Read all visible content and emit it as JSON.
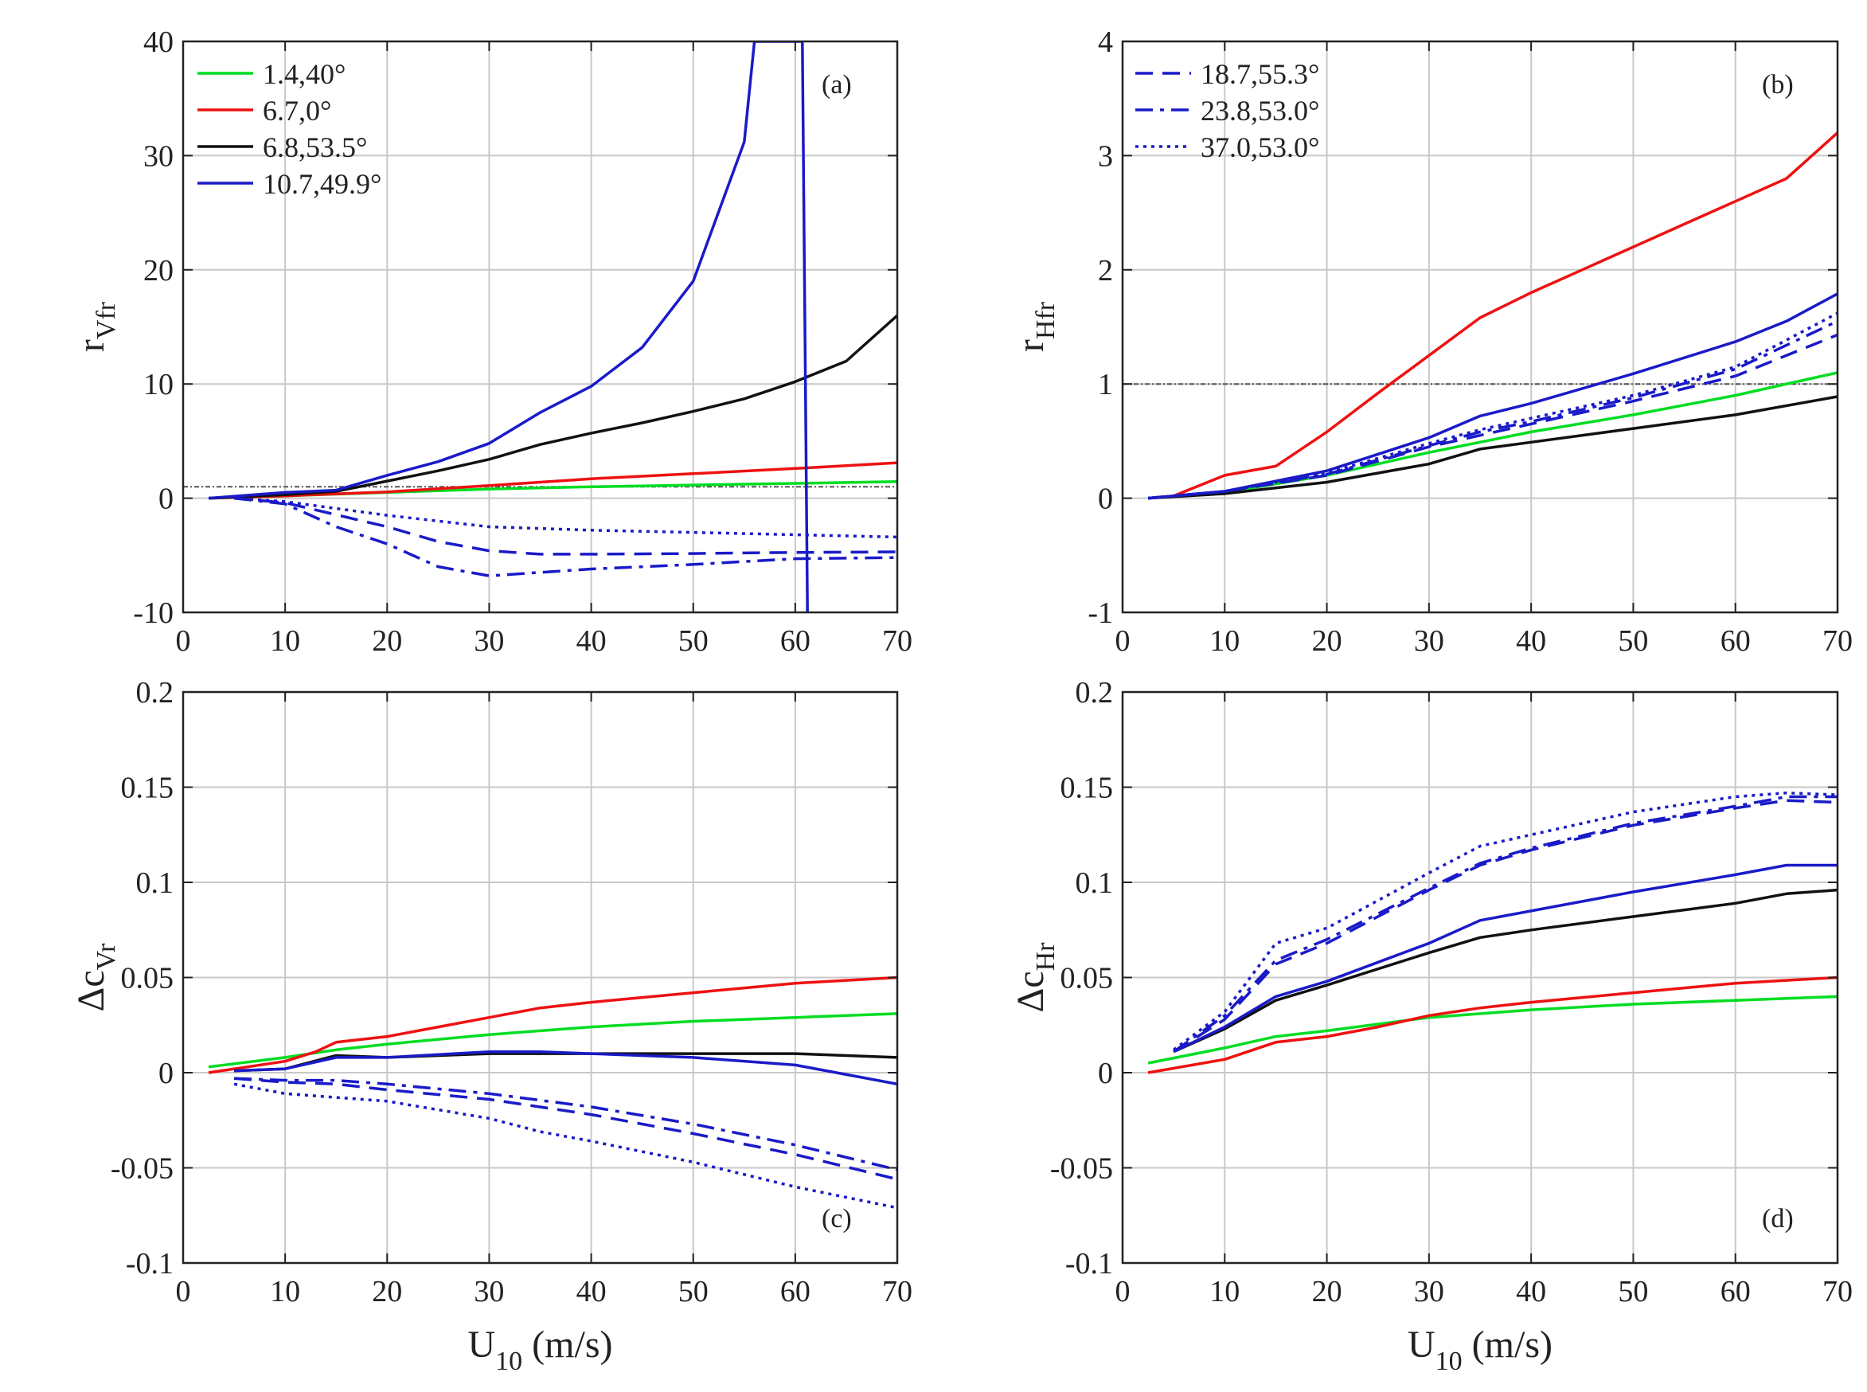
{
  "colors": {
    "green": "#00dd22",
    "red": "#ee1111",
    "black": "#111111",
    "blue": "#1a1ac8",
    "grid": "#c8c8c8",
    "refline": "#555555"
  },
  "legend_a": [
    "1.4,40°",
    "6.7,0°",
    "6.8,53.5°",
    "10.7,49.9°"
  ],
  "legend_b": [
    "18.7,55.3°",
    "23.8,53.0°",
    "37.0,53.0°"
  ],
  "chart_data": [
    {
      "type": "line",
      "panel_label": "(a)",
      "ylabel": {
        "main": "r",
        "sub": "Vfr"
      },
      "xlabel": "",
      "xlim": [
        0,
        70
      ],
      "ylim": [
        -10,
        40
      ],
      "xticks": [
        0,
        10,
        20,
        30,
        40,
        50,
        60,
        70
      ],
      "yticks": [
        -10,
        0,
        10,
        20,
        30,
        40
      ],
      "grid": true,
      "reference_line": 1,
      "series": [
        {
          "name": "1.4,40°",
          "color": "green",
          "dash": "solid",
          "x": [
            2.5,
            10,
            20,
            30,
            40,
            50,
            60,
            70
          ],
          "y": [
            0,
            0.2,
            0.5,
            0.8,
            1.0,
            1.15,
            1.3,
            1.45
          ]
        },
        {
          "name": "6.7,0°",
          "color": "red",
          "dash": "solid",
          "x": [
            2.5,
            10,
            20,
            30,
            40,
            50,
            60,
            70
          ],
          "y": [
            0,
            0.2,
            0.55,
            1.1,
            1.7,
            2.15,
            2.6,
            3.1
          ]
        },
        {
          "name": "6.8,53.5°",
          "color": "black",
          "dash": "solid",
          "x": [
            2.5,
            10,
            15,
            20,
            25,
            30,
            35,
            40,
            45,
            50,
            55,
            60,
            65,
            70
          ],
          "y": [
            0,
            0.3,
            0.6,
            1.5,
            2.4,
            3.4,
            4.7,
            5.7,
            6.6,
            7.6,
            8.7,
            10.2,
            12.0,
            16.0
          ]
        },
        {
          "name": "10.7,49.9°",
          "color": "blue",
          "dash": "solid",
          "x": [
            2.5,
            10,
            15,
            20,
            25,
            30,
            35,
            40,
            45,
            50,
            55,
            56,
            60.7,
            61.2
          ],
          "y": [
            0,
            0.5,
            0.7,
            2.0,
            3.2,
            4.8,
            7.5,
            9.8,
            13.2,
            19.0,
            31.2,
            40,
            40,
            -10
          ]
        },
        {
          "name": "18.7,55.3°",
          "color": "blue",
          "dash": "dashed",
          "x": [
            5,
            10,
            20,
            25,
            30,
            35,
            40,
            50,
            60,
            70
          ],
          "y": [
            0,
            -0.4,
            -2.5,
            -3.8,
            -4.6,
            -4.9,
            -4.9,
            -4.85,
            -4.75,
            -4.7
          ]
        },
        {
          "name": "23.8,53.0°",
          "color": "blue",
          "dash": "dashdot",
          "x": [
            5,
            10,
            15,
            20,
            25,
            30,
            35,
            40,
            50,
            60,
            70
          ],
          "y": [
            0,
            -0.5,
            -2.5,
            -4.0,
            -6.0,
            -6.8,
            -6.5,
            -6.2,
            -5.8,
            -5.3,
            -5.2
          ]
        },
        {
          "name": "37.0,53.0°",
          "color": "blue",
          "dash": "dotted",
          "x": [
            5,
            10,
            20,
            30,
            40,
            50,
            60,
            70
          ],
          "y": [
            0,
            -0.3,
            -1.5,
            -2.5,
            -2.8,
            -3.0,
            -3.2,
            -3.4
          ]
        }
      ]
    },
    {
      "type": "line",
      "panel_label": "(b)",
      "ylabel": {
        "main": "r",
        "sub": "Hfr"
      },
      "xlabel": "",
      "xlim": [
        0,
        70
      ],
      "ylim": [
        -1,
        4
      ],
      "xticks": [
        0,
        10,
        20,
        30,
        40,
        50,
        60,
        70
      ],
      "yticks": [
        -1,
        0,
        1,
        2,
        3,
        4
      ],
      "grid": true,
      "reference_line": 1,
      "series": [
        {
          "name": "1.4,40°",
          "color": "green",
          "dash": "solid",
          "x": [
            2.5,
            10,
            20,
            30,
            40,
            50,
            60,
            70
          ],
          "y": [
            0,
            0.05,
            0.2,
            0.4,
            0.58,
            0.73,
            0.9,
            1.1
          ]
        },
        {
          "name": "6.7,0°",
          "color": "red",
          "dash": "solid",
          "x": [
            2.5,
            5,
            10,
            15,
            20,
            25,
            30,
            35,
            40,
            45,
            50,
            55,
            60,
            65,
            70
          ],
          "y": [
            0,
            0.02,
            0.2,
            0.28,
            0.58,
            0.92,
            1.25,
            1.58,
            1.8,
            2.0,
            2.2,
            2.4,
            2.6,
            2.8,
            3.2
          ]
        },
        {
          "name": "6.8,53.5°",
          "color": "black",
          "dash": "solid",
          "x": [
            2.5,
            10,
            20,
            30,
            35,
            40,
            50,
            60,
            70
          ],
          "y": [
            0,
            0.04,
            0.14,
            0.3,
            0.43,
            0.49,
            0.61,
            0.73,
            0.89
          ]
        },
        {
          "name": "10.7,49.9°",
          "color": "blue",
          "dash": "solid",
          "x": [
            2.5,
            10,
            20,
            30,
            35,
            40,
            50,
            60,
            65,
            70
          ],
          "y": [
            0,
            0.06,
            0.24,
            0.53,
            0.72,
            0.83,
            1.09,
            1.37,
            1.55,
            1.79
          ]
        },
        {
          "name": "18.7,55.3°",
          "color": "blue",
          "dash": "dashed",
          "x": [
            2.5,
            10,
            20,
            30,
            35,
            40,
            50,
            60,
            70
          ],
          "y": [
            0,
            0.06,
            0.2,
            0.45,
            0.55,
            0.65,
            0.85,
            1.07,
            1.43
          ]
        },
        {
          "name": "23.8,53.0°",
          "color": "blue",
          "dash": "dashdot",
          "x": [
            2.5,
            10,
            20,
            30,
            35,
            40,
            50,
            60,
            70
          ],
          "y": [
            0,
            0.06,
            0.21,
            0.46,
            0.58,
            0.67,
            0.88,
            1.13,
            1.55
          ]
        },
        {
          "name": "37.0,53.0°",
          "color": "blue",
          "dash": "dotted",
          "x": [
            2.5,
            10,
            20,
            30,
            35,
            40,
            50,
            60,
            70
          ],
          "y": [
            0,
            0.06,
            0.22,
            0.48,
            0.6,
            0.7,
            0.9,
            1.15,
            1.62
          ]
        }
      ]
    },
    {
      "type": "line",
      "panel_label": "(c)",
      "ylabel": {
        "main": "Δc",
        "sub": "Vr"
      },
      "xlabel": {
        "main": "U",
        "sub": "10",
        "rest": " (m/s)"
      },
      "xlim": [
        0,
        70
      ],
      "ylim": [
        -0.1,
        0.2
      ],
      "xticks": [
        0,
        10,
        20,
        30,
        40,
        50,
        60,
        70
      ],
      "yticks": [
        -0.1,
        -0.05,
        0,
        0.05,
        0.1,
        0.15,
        0.2
      ],
      "grid": true,
      "series": [
        {
          "name": "1.4,40°",
          "color": "green",
          "dash": "solid",
          "x": [
            2.5,
            10,
            15,
            20,
            30,
            40,
            50,
            60,
            70
          ],
          "y": [
            0.003,
            0.008,
            0.012,
            0.015,
            0.02,
            0.024,
            0.027,
            0.029,
            0.031
          ]
        },
        {
          "name": "6.7,0°",
          "color": "red",
          "dash": "solid",
          "x": [
            2.5,
            10,
            13,
            15,
            20,
            25,
            30,
            35,
            40,
            50,
            60,
            70
          ],
          "y": [
            0,
            0.006,
            0.011,
            0.016,
            0.019,
            0.024,
            0.029,
            0.034,
            0.037,
            0.042,
            0.047,
            0.05
          ]
        },
        {
          "name": "6.8,53.5°",
          "color": "black",
          "dash": "solid",
          "x": [
            5,
            10,
            15,
            20,
            30,
            40,
            50,
            60,
            70
          ],
          "y": [
            0.001,
            0.002,
            0.009,
            0.008,
            0.01,
            0.01,
            0.01,
            0.01,
            0.008
          ]
        },
        {
          "name": "10.7,49.9°",
          "color": "blue",
          "dash": "solid",
          "x": [
            5,
            10,
            15,
            20,
            30,
            35,
            40,
            50,
            60,
            70
          ],
          "y": [
            0.001,
            0.002,
            0.008,
            0.008,
            0.011,
            0.011,
            0.01,
            0.008,
            0.004,
            -0.006
          ]
        },
        {
          "name": "18.7,55.3°",
          "color": "blue",
          "dash": "dashed",
          "x": [
            5,
            10,
            15,
            20,
            30,
            40,
            50,
            60,
            70
          ],
          "y": [
            -0.003,
            -0.005,
            -0.006,
            -0.009,
            -0.014,
            -0.022,
            -0.032,
            -0.043,
            -0.056
          ]
        },
        {
          "name": "23.8,53.0°",
          "color": "blue",
          "dash": "dashdot",
          "x": [
            5,
            10,
            15,
            20,
            30,
            40,
            50,
            60,
            70
          ],
          "y": [
            -0.003,
            -0.004,
            -0.004,
            -0.006,
            -0.011,
            -0.018,
            -0.027,
            -0.038,
            -0.051
          ]
        },
        {
          "name": "37.0,53.0°",
          "color": "blue",
          "dash": "dotted",
          "x": [
            5,
            10,
            15,
            20,
            30,
            35,
            40,
            50,
            60,
            70
          ],
          "y": [
            -0.006,
            -0.011,
            -0.013,
            -0.015,
            -0.024,
            -0.031,
            -0.036,
            -0.047,
            -0.06,
            -0.071
          ]
        }
      ]
    },
    {
      "type": "line",
      "panel_label": "(d)",
      "ylabel": {
        "main": "Δc",
        "sub": "Hr"
      },
      "xlabel": {
        "main": "U",
        "sub": "10",
        "rest": " (m/s)"
      },
      "xlim": [
        0,
        70
      ],
      "ylim": [
        -0.1,
        0.2
      ],
      "xticks": [
        0,
        10,
        20,
        30,
        40,
        50,
        60,
        70
      ],
      "yticks": [
        -0.1,
        -0.05,
        0,
        0.05,
        0.1,
        0.15,
        0.2
      ],
      "grid": true,
      "series": [
        {
          "name": "1.4,40°",
          "color": "green",
          "dash": "solid",
          "x": [
            2.5,
            10,
            15,
            20,
            30,
            40,
            50,
            60,
            70
          ],
          "y": [
            0.005,
            0.013,
            0.019,
            0.022,
            0.029,
            0.033,
            0.036,
            0.038,
            0.04
          ]
        },
        {
          "name": "6.7,0°",
          "color": "red",
          "dash": "solid",
          "x": [
            2.5,
            10,
            15,
            20,
            25,
            30,
            35,
            40,
            50,
            60,
            70
          ],
          "y": [
            0,
            0.007,
            0.016,
            0.019,
            0.024,
            0.03,
            0.034,
            0.037,
            0.042,
            0.047,
            0.05
          ]
        },
        {
          "name": "6.8,53.5°",
          "color": "black",
          "dash": "solid",
          "x": [
            5,
            10,
            15,
            20,
            30,
            35,
            40,
            50,
            60,
            65,
            70
          ],
          "y": [
            0.011,
            0.023,
            0.038,
            0.046,
            0.063,
            0.071,
            0.075,
            0.082,
            0.089,
            0.094,
            0.096
          ]
        },
        {
          "name": "10.7,49.9°",
          "color": "blue",
          "dash": "solid",
          "x": [
            5,
            10,
            15,
            20,
            30,
            35,
            40,
            50,
            60,
            65,
            70
          ],
          "y": [
            0.011,
            0.024,
            0.04,
            0.048,
            0.068,
            0.08,
            0.085,
            0.095,
            0.104,
            0.109,
            0.109
          ]
        },
        {
          "name": "18.7,55.3°",
          "color": "blue",
          "dash": "dashed",
          "x": [
            5,
            10,
            15,
            20,
            30,
            35,
            40,
            50,
            60,
            65,
            70
          ],
          "y": [
            0.011,
            0.028,
            0.057,
            0.068,
            0.096,
            0.109,
            0.117,
            0.13,
            0.139,
            0.143,
            0.142
          ]
        },
        {
          "name": "23.8,53.0°",
          "color": "blue",
          "dash": "dashdot",
          "x": [
            5,
            10,
            15,
            20,
            30,
            35,
            40,
            50,
            60,
            65,
            70
          ],
          "y": [
            0.011,
            0.03,
            0.059,
            0.07,
            0.097,
            0.11,
            0.118,
            0.131,
            0.14,
            0.145,
            0.145
          ]
        },
        {
          "name": "37.0,53.0°",
          "color": "blue",
          "dash": "dotted",
          "x": [
            5,
            10,
            15,
            20,
            30,
            35,
            40,
            50,
            60,
            65,
            70
          ],
          "y": [
            0.012,
            0.032,
            0.068,
            0.076,
            0.105,
            0.119,
            0.125,
            0.137,
            0.145,
            0.147,
            0.146
          ]
        }
      ]
    }
  ]
}
